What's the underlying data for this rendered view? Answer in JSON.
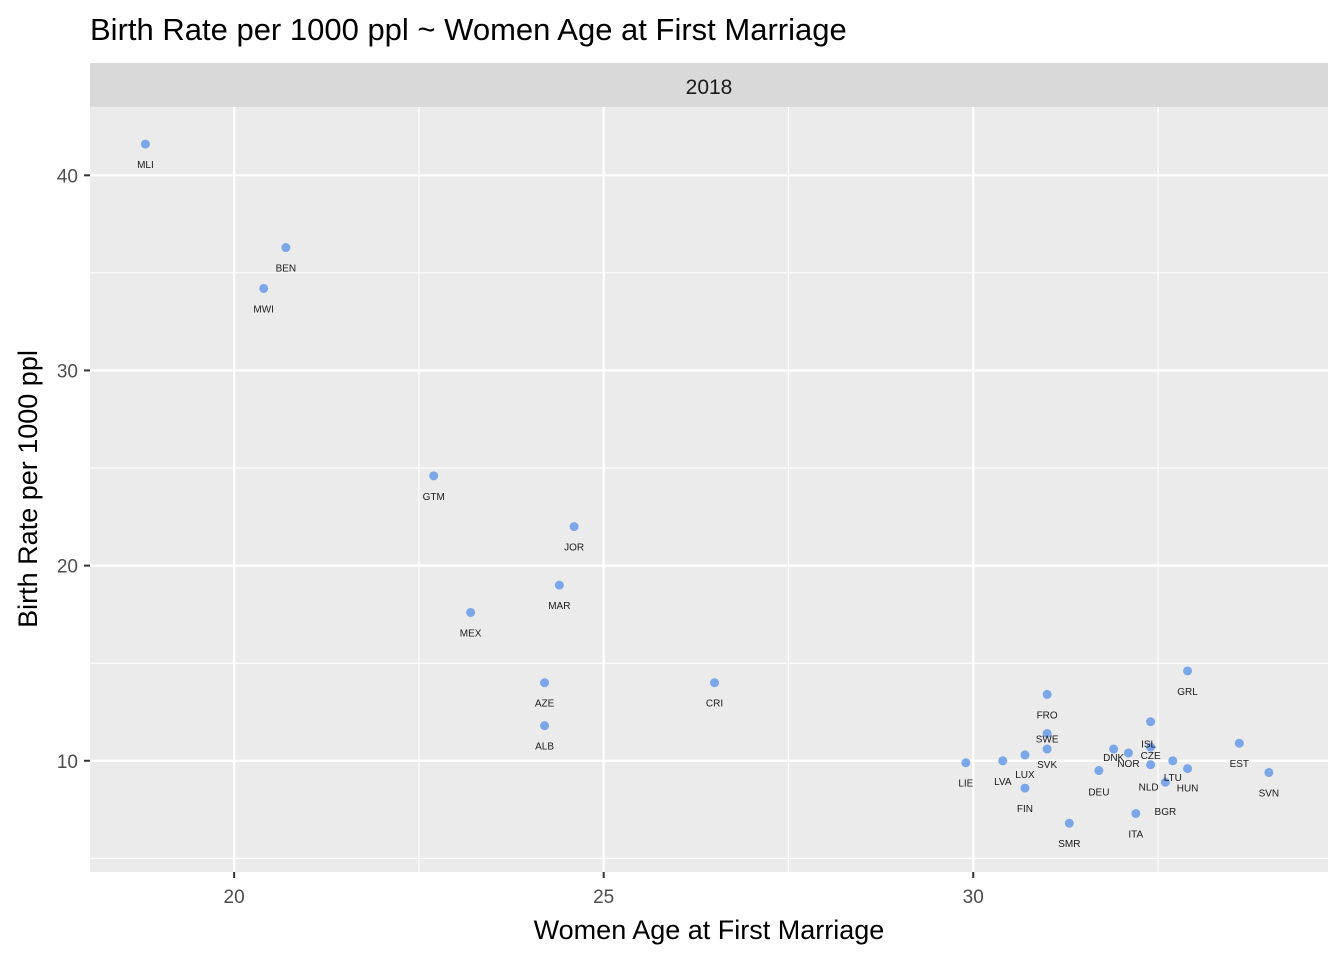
{
  "chart_data": {
    "type": "scatter",
    "title": "Birth Rate per 1000 ppl ~ Women Age at First Marriage",
    "facet": "2018",
    "xlabel": "Women Age at First Marriage",
    "ylabel": "Birth Rate per 1000 ppl",
    "xlim": [
      18.05,
      34.8
    ],
    "ylim": [
      4.3,
      43.5
    ],
    "x_ticks": [
      20,
      25,
      30
    ],
    "y_ticks": [
      10,
      20,
      30,
      40
    ],
    "x_tick_labels": [
      "20",
      "25",
      "30"
    ],
    "y_tick_labels": [
      "10",
      "20",
      "30",
      "40"
    ],
    "grid": true,
    "legend": "none",
    "point_color": "#6f9fe8",
    "panel_color": "#ebebeb",
    "strip_color": "#d9d9d9",
    "points": [
      {
        "label": "MLI",
        "x": 18.8,
        "y": 41.6
      },
      {
        "label": "BEN",
        "x": 20.7,
        "y": 36.3
      },
      {
        "label": "MWI",
        "x": 20.4,
        "y": 34.2
      },
      {
        "label": "GTM",
        "x": 22.7,
        "y": 24.6
      },
      {
        "label": "JOR",
        "x": 24.6,
        "y": 22.0
      },
      {
        "label": "MAR",
        "x": 24.4,
        "y": 19.0
      },
      {
        "label": "MEX",
        "x": 23.2,
        "y": 17.6
      },
      {
        "label": "AZE",
        "x": 24.2,
        "y": 14.0
      },
      {
        "label": "ALB",
        "x": 24.2,
        "y": 11.8
      },
      {
        "label": "CRI",
        "x": 26.5,
        "y": 14.0
      },
      {
        "label": "GRL",
        "x": 32.9,
        "y": 14.6
      },
      {
        "label": "FRO",
        "x": 31.0,
        "y": 13.4
      },
      {
        "label": "ISL",
        "x": 32.4,
        "y": 12.0
      },
      {
        "label": "EST",
        "x": 33.6,
        "y": 10.9
      },
      {
        "label": "SWE",
        "x": 31.0,
        "y": 11.4
      },
      {
        "label": "SVK",
        "x": 31.0,
        "y": 10.6
      },
      {
        "label": "LUX",
        "x": 30.7,
        "y": 10.3
      },
      {
        "label": "LVA",
        "x": 30.4,
        "y": 10.0
      },
      {
        "label": "LIE",
        "x": 29.9,
        "y": 9.9
      },
      {
        "label": "FIN",
        "x": 30.7,
        "y": 8.6
      },
      {
        "label": "DNK",
        "x": 31.9,
        "y": 10.6
      },
      {
        "label": "NOR",
        "x": 32.1,
        "y": 10.4
      },
      {
        "label": "CZE",
        "x": 32.4,
        "y": 10.7
      },
      {
        "label": "DEU",
        "x": 31.7,
        "y": 9.5
      },
      {
        "label": "NLD",
        "x": 32.4,
        "y": 9.8
      },
      {
        "label": "LTU",
        "x": 32.7,
        "y": 10.0
      },
      {
        "label": "HUN",
        "x": 32.9,
        "y": 9.6
      },
      {
        "label": "BGR",
        "x": 32.6,
        "y": 8.9
      },
      {
        "label": "ITA",
        "x": 32.2,
        "y": 7.3
      },
      {
        "label": "SMR",
        "x": 31.3,
        "y": 6.8
      },
      {
        "label": "SVN",
        "x": 34.0,
        "y": 9.4
      }
    ]
  }
}
